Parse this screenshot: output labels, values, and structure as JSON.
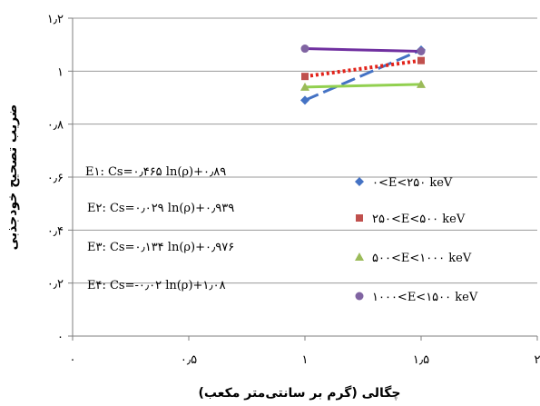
{
  "chart_data": {
    "type": "line",
    "xlabel": "چگالی (گرم بر سانتی‌متر مکعب)",
    "ylabel": "ضریب تصحیح خودجذبی",
    "xlim": [
      0,
      2
    ],
    "ylim": [
      0,
      1.2
    ],
    "x_ticks": [
      {
        "value": 0,
        "label": "۰"
      },
      {
        "value": 0.5,
        "label": "۰٫۵"
      },
      {
        "value": 1,
        "label": "۱"
      },
      {
        "value": 1.5,
        "label": "۱٫۵"
      },
      {
        "value": 2,
        "label": "۲"
      }
    ],
    "y_ticks": [
      {
        "value": 0,
        "label": "۰"
      },
      {
        "value": 0.2,
        "label": "۰٫۲"
      },
      {
        "value": 0.4,
        "label": "۰٫۴"
      },
      {
        "value": 0.6,
        "label": "۰٫۶"
      },
      {
        "value": 0.8,
        "label": "۰٫۸"
      },
      {
        "value": 1,
        "label": "۱"
      },
      {
        "value": 1.2,
        "label": "۱٫۲"
      }
    ],
    "series": [
      {
        "name": "۰<E<۲۵۰ keV",
        "x": [
          1,
          1.5
        ],
        "y": [
          0.89,
          1.08
        ],
        "marker": "diamond",
        "color": "#4472c4",
        "fit_color": "#4472c4",
        "fit_dash": "16 6"
      },
      {
        "name": "۲۵۰<E<۵۰۰ keV",
        "x": [
          1,
          1.5
        ],
        "y": [
          0.98,
          1.04
        ],
        "marker": "square",
        "color": "#c0504d",
        "fit_color": "#e2231a",
        "fit_dash": "3 3"
      },
      {
        "name": "۵۰۰<E<۱۰۰۰ keV",
        "x": [
          1,
          1.5
        ],
        "y": [
          0.94,
          0.95
        ],
        "marker": "triangle",
        "color": "#9bbb59",
        "fit_color": "#92d050",
        "fit_dash": ""
      },
      {
        "name": "۱۰۰۰<E<۱۵۰۰ keV",
        "x": [
          1,
          1.5
        ],
        "y": [
          1.085,
          1.075
        ],
        "marker": "circle",
        "color": "#8064a2",
        "fit_color": "#7030a0",
        "fit_dash": ""
      }
    ],
    "equations": [
      {
        "id": "E۱:",
        "text": "Cs=۰٫۴۶۵ ln(ρ)+۰٫۸۹"
      },
      {
        "id": "E۲:",
        "text": "Cs=۰٫۰۲۹ ln(ρ)+۰٫۹۳۹"
      },
      {
        "id": "E۳:",
        "text": "Cs=۰٫۱۳۴ ln(ρ)+۰٫۹۷۶"
      },
      {
        "id": "E۴:",
        "text": "Cs=-۰٫۰۲ ln(ρ)+۱٫۰۸"
      }
    ],
    "legend_position": "right",
    "grid": "horizontal"
  }
}
